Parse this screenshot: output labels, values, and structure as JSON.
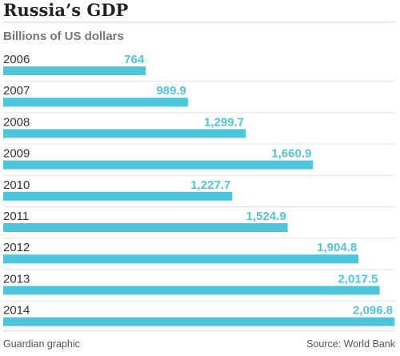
{
  "chart_data": {
    "type": "bar",
    "orientation": "horizontal",
    "title": "Russia’s GDP",
    "subtitle": "Billions of US dollars",
    "categories": [
      "2006",
      "2007",
      "2008",
      "2009",
      "2010",
      "2011",
      "2012",
      "2013",
      "2014"
    ],
    "values": [
      764,
      989.9,
      1299.7,
      1660.9,
      1227.7,
      1524.9,
      1904.8,
      2017.5,
      2096.8
    ],
    "value_labels": [
      "764",
      "989.9",
      "1,299.7",
      "1,660.9",
      "1,227.7",
      "1,524.9",
      "1,904.8",
      "2,017.5",
      "2,096.8"
    ],
    "xlim": [
      0,
      2096.8
    ],
    "grid": false,
    "legend": "none",
    "bar_color": "#4dc6dc"
  },
  "footer": {
    "credit": "Guardian graphic",
    "source": "Source: World Bank"
  }
}
